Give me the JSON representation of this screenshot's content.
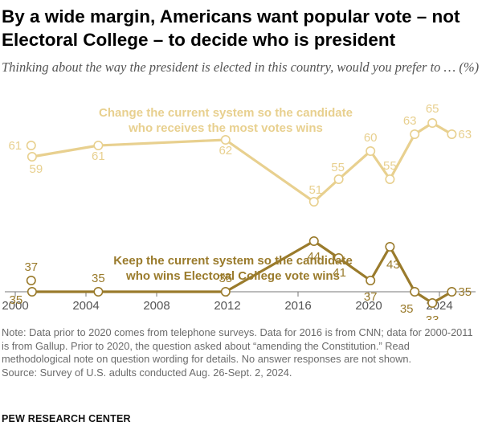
{
  "title": "By a wide margin, Americans want popular vote – not Electoral College – to decide who is president",
  "subtitle": "Thinking about the way the president is elected in this country, would you prefer to … (%)",
  "chart_data": {
    "type": "line",
    "x_ticks": [
      2000,
      2004,
      2008,
      2012,
      2016,
      2020,
      2024
    ],
    "xlim": [
      2000,
      2025
    ],
    "ylim": [
      30,
      70
    ],
    "grid": false,
    "series": [
      {
        "name": "Change the current system so the candidate who receives the most votes wins",
        "label_lines": [
          "Change the current system so the candidate",
          "who receives the most votes wins"
        ],
        "color": "#e8d08f",
        "points": [
          {
            "x": 2000.9,
            "y": 61,
            "label": "61"
          },
          {
            "x": 2000.95,
            "y": 59,
            "label": "59"
          },
          {
            "x": 2004.7,
            "y": 61,
            "label": "61"
          },
          {
            "x": 2011.9,
            "y": 62,
            "label": "62"
          },
          {
            "x": 2016.9,
            "y": 51,
            "label": "51"
          },
          {
            "x": 2018.3,
            "y": 55,
            "label": "55"
          },
          {
            "x": 2020.1,
            "y": 60,
            "label": "60"
          },
          {
            "x": 2021.2,
            "y": 55,
            "label": "55"
          },
          {
            "x": 2022.6,
            "y": 63,
            "label": "63"
          },
          {
            "x": 2023.6,
            "y": 65,
            "label": "65"
          },
          {
            "x": 2024.7,
            "y": 63,
            "label": "63"
          }
        ]
      },
      {
        "name": "Keep the current system so the candidate who wins Electoral College vote wins",
        "label_lines": [
          "Keep the current system so the candidate",
          "who wins Electoral College vote wins"
        ],
        "color": "#9a7b2c",
        "points": [
          {
            "x": 2000.9,
            "y": 37,
            "label": "37"
          },
          {
            "x": 2000.95,
            "y": 35,
            "label": "35"
          },
          {
            "x": 2004.7,
            "y": 35,
            "label": "35"
          },
          {
            "x": 2011.9,
            "y": 35,
            "label": "35"
          },
          {
            "x": 2016.9,
            "y": 44,
            "label": "44"
          },
          {
            "x": 2018.3,
            "y": 41,
            "label": "41"
          },
          {
            "x": 2020.1,
            "y": 37,
            "label": "37"
          },
          {
            "x": 2021.2,
            "y": 43,
            "label": "43"
          },
          {
            "x": 2022.6,
            "y": 35,
            "label": "35"
          },
          {
            "x": 2023.6,
            "y": 33,
            "label": "33"
          },
          {
            "x": 2024.7,
            "y": 35,
            "label": "35"
          }
        ]
      }
    ]
  },
  "notes": [
    "Note: Data prior to 2020 comes from telephone surveys. Data for 2016 is from CNN; data for 2000-2011 is from Gallup. Prior to 2020, the question asked about “amending the Constitution.” Read methodological note on question wording for details. No answer responses are not shown.",
    "Source: Survey of U.S. adults conducted Aug. 26-Sept. 2, 2024."
  ],
  "branding": "PEW RESEARCH CENTER"
}
